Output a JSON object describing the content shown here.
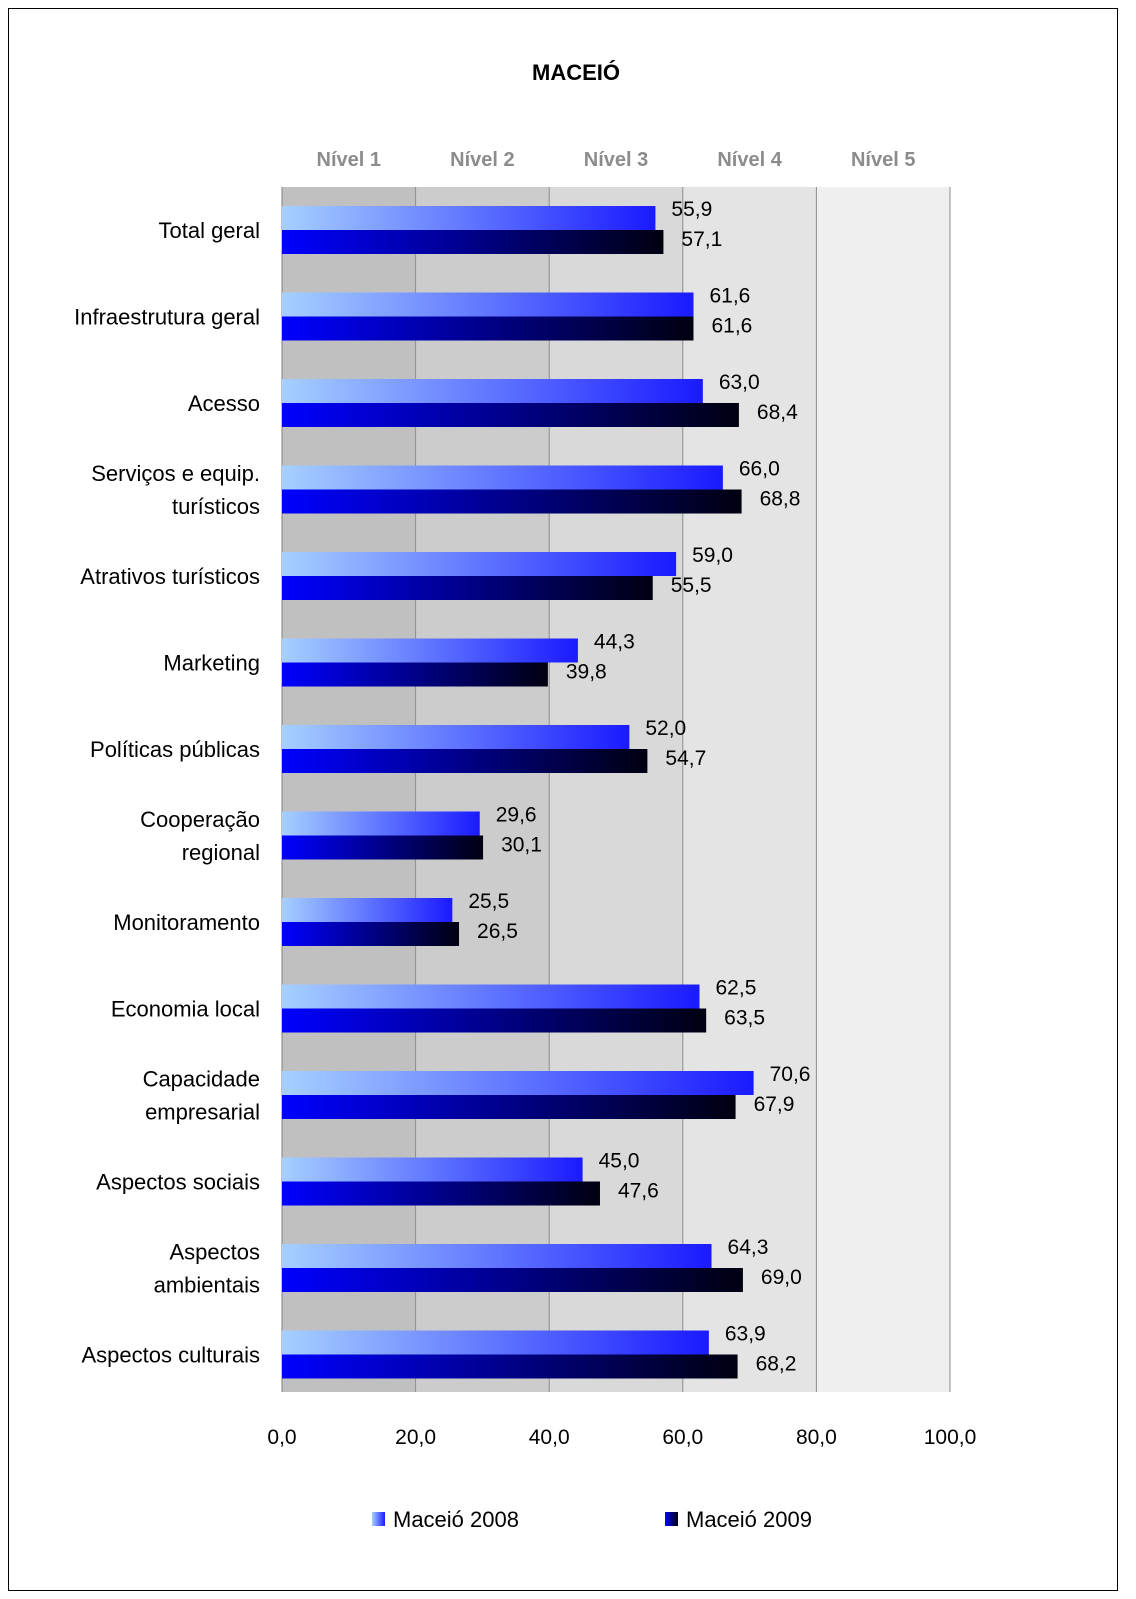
{
  "chart_data": {
    "type": "bar",
    "orientation": "horizontal",
    "title": "MACEIÓ",
    "bands": [
      "Nível 1",
      "Nível 2",
      "Nível 3",
      "Nível 4",
      "Nível 5"
    ],
    "band_colors": [
      "#c0c0c0",
      "#cccccc",
      "#d9d9d9",
      "#e4e4e4",
      "#efefef"
    ],
    "categories": [
      [
        "Total geral"
      ],
      [
        "Infraestrutura geral"
      ],
      [
        "Acesso"
      ],
      [
        "Serviços e equip.",
        "turísticos"
      ],
      [
        "Atrativos turísticos"
      ],
      [
        "Marketing"
      ],
      [
        "Políticas públicas"
      ],
      [
        "Cooperação",
        "regional"
      ],
      [
        "Monitoramento"
      ],
      [
        "Economia local"
      ],
      [
        "Capacidade",
        "empresarial"
      ],
      [
        "Aspectos sociais"
      ],
      [
        "Aspectos",
        "ambientais"
      ],
      [
        "Aspectos culturais"
      ]
    ],
    "series": [
      {
        "name": "Maceió 2008",
        "values": [
          55.9,
          61.6,
          63.0,
          66.0,
          59.0,
          44.3,
          52.0,
          29.6,
          25.5,
          62.5,
          70.6,
          45.0,
          64.3,
          63.9
        ],
        "labels": [
          "55,9",
          "61,6",
          "63,0",
          "66,0",
          "59,0",
          "44,3",
          "52,0",
          "29,6",
          "25,5",
          "62,5",
          "70,6",
          "45,0",
          "64,3",
          "63,9"
        ],
        "color_start": "#a6d0ff",
        "color_end": "#1a1aff"
      },
      {
        "name": "Maceió 2009",
        "values": [
          57.1,
          61.6,
          68.4,
          68.8,
          55.5,
          39.8,
          54.7,
          30.1,
          26.5,
          63.5,
          67.9,
          47.6,
          69.0,
          68.2
        ],
        "labels": [
          "57,1",
          "61,6",
          "68,4",
          "68,8",
          "55,5",
          "39,8",
          "54,7",
          "30,1",
          "26,5",
          "63,5",
          "67,9",
          "47,6",
          "69,0",
          "68,2"
        ],
        "color_start": "#0000ff",
        "color_end": "#000010"
      }
    ],
    "xlim": [
      0,
      100
    ],
    "xticks": [
      0,
      20,
      40,
      60,
      80,
      100
    ],
    "xtick_labels": [
      "0,0",
      "20,0",
      "40,0",
      "60,0",
      "80,0",
      "100,0"
    ],
    "legend_position": "bottom",
    "grid": true
  }
}
